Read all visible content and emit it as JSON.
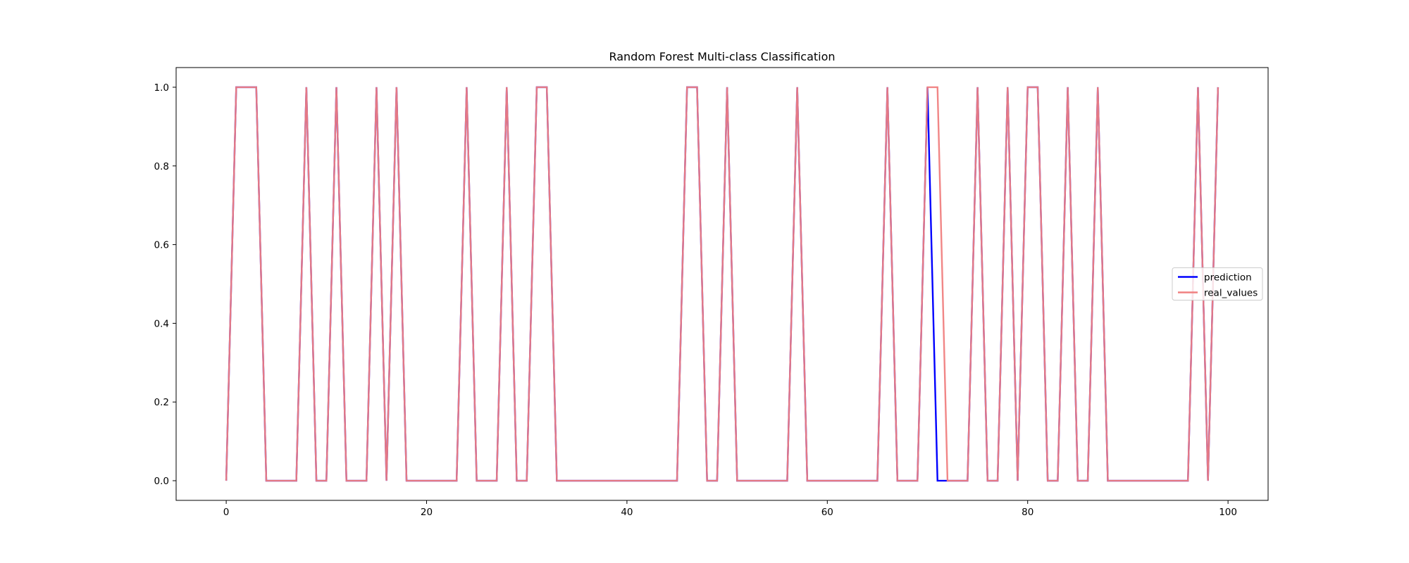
{
  "chart_data": {
    "type": "line",
    "title": "Random Forest Multi-class Classification",
    "xlabel": "",
    "ylabel": "",
    "xlim": [
      -5,
      104
    ],
    "ylim": [
      -0.05,
      1.05
    ],
    "xticks": [
      0,
      20,
      40,
      60,
      80,
      100
    ],
    "xtick_labels": [
      "0",
      "20",
      "40",
      "60",
      "80",
      "100"
    ],
    "yticks": [
      0.0,
      0.2,
      0.4,
      0.6,
      0.8,
      1.0
    ],
    "ytick_labels": [
      "0.0",
      "0.2",
      "0.4",
      "0.6",
      "0.8",
      "1.0"
    ],
    "grid": false,
    "legend_position": "center-right",
    "x": [
      0,
      1,
      2,
      3,
      4,
      5,
      6,
      7,
      8,
      9,
      10,
      11,
      12,
      13,
      14,
      15,
      16,
      17,
      18,
      19,
      20,
      21,
      22,
      23,
      24,
      25,
      26,
      27,
      28,
      29,
      30,
      31,
      32,
      33,
      34,
      35,
      36,
      37,
      38,
      39,
      40,
      41,
      42,
      43,
      44,
      45,
      46,
      47,
      48,
      49,
      50,
      51,
      52,
      53,
      54,
      55,
      56,
      57,
      58,
      59,
      60,
      61,
      62,
      63,
      64,
      65,
      66,
      67,
      68,
      69,
      70,
      71,
      72,
      73,
      74,
      75,
      76,
      77,
      78,
      79,
      80,
      81,
      82,
      83,
      84,
      85,
      86,
      87,
      88,
      89,
      90,
      91,
      92,
      93,
      94,
      95,
      96,
      97,
      98,
      99
    ],
    "series": [
      {
        "name": "prediction",
        "color": "#0000ff",
        "values": [
          0,
          1,
          1,
          1,
          0,
          0,
          0,
          0,
          1,
          0,
          0,
          1,
          0,
          0,
          0,
          1,
          0,
          1,
          0,
          0,
          0,
          0,
          0,
          0,
          1,
          0,
          0,
          0,
          1,
          0,
          0,
          1,
          1,
          0,
          0,
          0,
          0,
          0,
          0,
          0,
          0,
          0,
          0,
          0,
          0,
          0,
          1,
          1,
          0,
          0,
          1,
          0,
          0,
          0,
          0,
          0,
          0,
          1,
          0,
          0,
          0,
          0,
          0,
          0,
          0,
          0,
          1,
          0,
          0,
          0,
          1,
          0,
          0,
          0,
          0,
          1,
          0,
          0,
          1,
          0,
          1,
          1,
          0,
          0,
          1,
          0,
          0,
          1,
          0,
          0,
          0,
          0,
          0,
          0,
          0,
          0,
          0,
          1,
          0,
          1
        ]
      },
      {
        "name": "real_values",
        "color": "#f08080",
        "values": [
          0,
          1,
          1,
          1,
          0,
          0,
          0,
          0,
          1,
          0,
          0,
          1,
          0,
          0,
          0,
          1,
          0,
          1,
          0,
          0,
          0,
          0,
          0,
          0,
          1,
          0,
          0,
          0,
          1,
          0,
          0,
          1,
          1,
          0,
          0,
          0,
          0,
          0,
          0,
          0,
          0,
          0,
          0,
          0,
          0,
          0,
          1,
          1,
          0,
          0,
          1,
          0,
          0,
          0,
          0,
          0,
          0,
          1,
          0,
          0,
          0,
          0,
          0,
          0,
          0,
          0,
          1,
          0,
          0,
          0,
          1,
          1,
          0,
          0,
          0,
          1,
          0,
          0,
          1,
          0,
          1,
          1,
          0,
          0,
          1,
          0,
          0,
          1,
          0,
          0,
          0,
          0,
          0,
          0,
          0,
          0,
          0,
          1,
          0,
          1
        ]
      }
    ]
  }
}
